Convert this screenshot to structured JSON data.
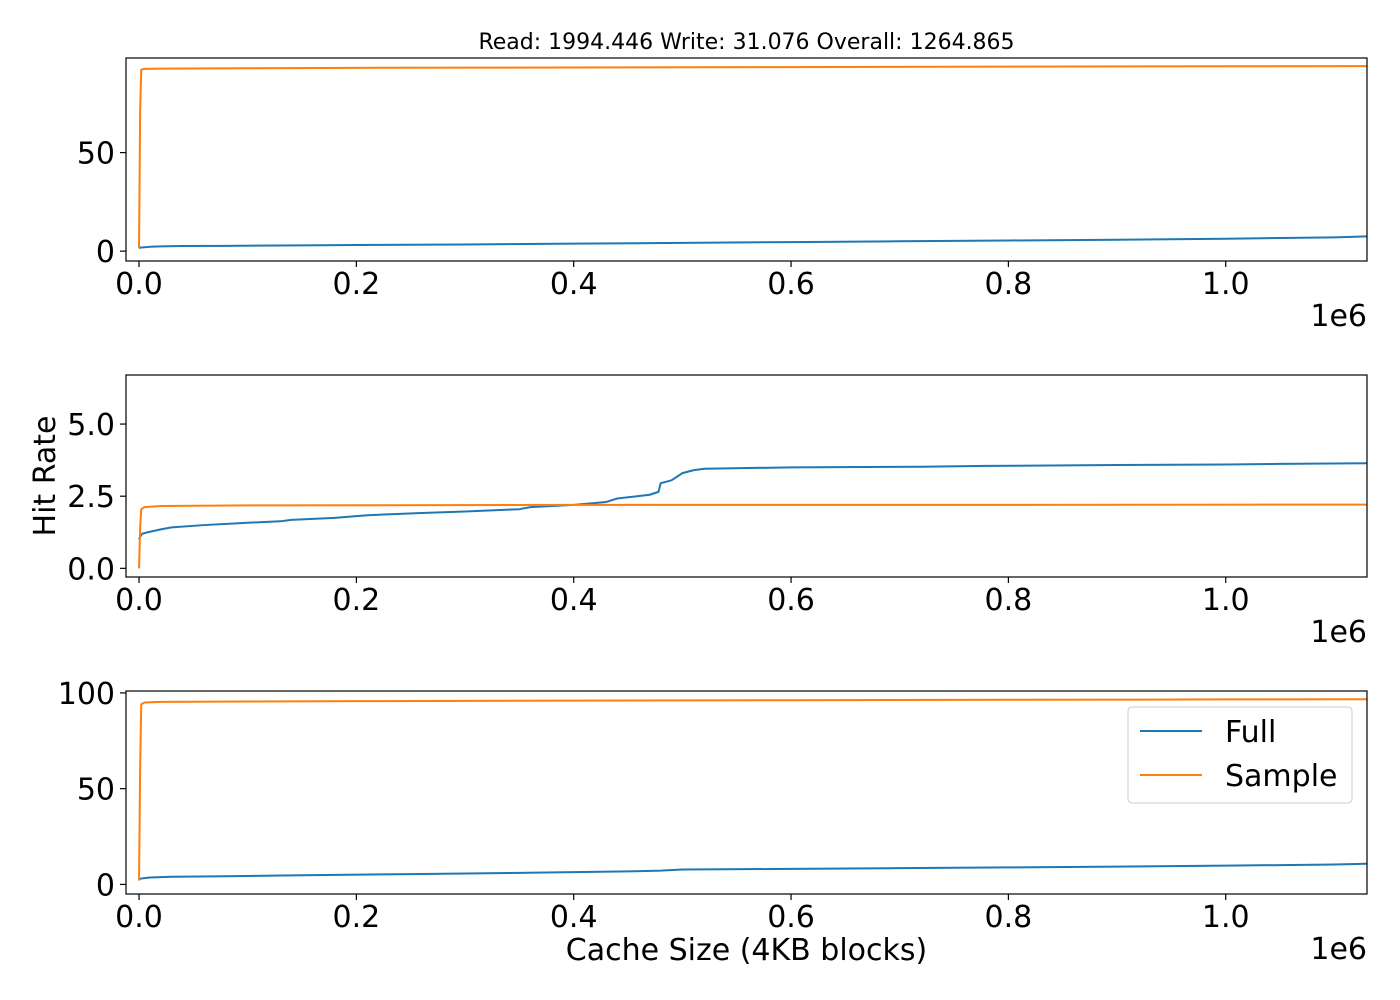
{
  "chart_data": [
    {
      "type": "line",
      "title": "Read: 1994.446 Write: 31.076 Overall: 1264.865",
      "xlabel": "",
      "ylabel": "",
      "x_offset_text": "1e6",
      "xlim": [
        -12000,
        1130000
      ],
      "ylim": [
        -5,
        98
      ],
      "x_ticks": [
        0.0,
        0.2,
        0.4,
        0.6,
        0.8,
        1.0
      ],
      "x_tick_labels": [
        "0.0",
        "0.2",
        "0.4",
        "0.6",
        "0.8",
        "1.0"
      ],
      "y_ticks": [
        0,
        50
      ],
      "y_tick_labels": [
        "0",
        "50"
      ],
      "series": [
        {
          "name": "Full",
          "color": "#1f77b4",
          "x": [
            0,
            1000,
            5000,
            10000,
            20000,
            40000,
            80000,
            150000,
            200000,
            300000,
            400000,
            500000,
            600000,
            700000,
            800000,
            900000,
            1000000,
            1100000,
            1130000
          ],
          "y": [
            1.5,
            1.8,
            2.0,
            2.2,
            2.4,
            2.6,
            2.7,
            2.9,
            3.1,
            3.4,
            3.8,
            4.2,
            4.6,
            5.0,
            5.4,
            5.8,
            6.3,
            7.0,
            7.5
          ]
        },
        {
          "name": "Sample",
          "color": "#ff7f0e",
          "x": [
            0,
            1000,
            2000,
            5000,
            20000,
            100000,
            200000,
            400000,
            600000,
            800000,
            1000000,
            1130000
          ],
          "y": [
            1.5,
            70.0,
            92.0,
            92.5,
            92.6,
            92.8,
            93.0,
            93.2,
            93.4,
            93.6,
            93.8,
            93.9
          ]
        }
      ]
    },
    {
      "type": "line",
      "title": "",
      "xlabel": "",
      "ylabel": "Hit Rate",
      "x_offset_text": "1e6",
      "xlim": [
        -12000,
        1130000
      ],
      "ylim": [
        -0.3,
        6.7
      ],
      "x_ticks": [
        0.0,
        0.2,
        0.4,
        0.6,
        0.8,
        1.0
      ],
      "x_tick_labels": [
        "0.0",
        "0.2",
        "0.4",
        "0.6",
        "0.8",
        "1.0"
      ],
      "y_ticks": [
        0.0,
        2.5,
        5.0
      ],
      "y_tick_labels": [
        "0.0",
        "2.5",
        "5.0"
      ],
      "series": [
        {
          "name": "Full",
          "color": "#1f77b4",
          "x": [
            0,
            1000,
            3000,
            8000,
            20000,
            30000,
            60000,
            100000,
            130000,
            140000,
            180000,
            210000,
            260000,
            300000,
            350000,
            360000,
            400000,
            430000,
            440000,
            470000,
            478000,
            480000,
            490000,
            500000,
            510000,
            520000,
            600000,
            720000,
            780000,
            900000,
            1000000,
            1050000,
            1130000
          ],
          "y": [
            1.0,
            1.1,
            1.2,
            1.25,
            1.35,
            1.42,
            1.5,
            1.58,
            1.63,
            1.68,
            1.75,
            1.84,
            1.92,
            1.97,
            2.05,
            2.12,
            2.2,
            2.3,
            2.42,
            2.55,
            2.65,
            2.95,
            3.05,
            3.3,
            3.4,
            3.45,
            3.5,
            3.52,
            3.55,
            3.58,
            3.6,
            3.62,
            3.64
          ]
        },
        {
          "name": "Sample",
          "color": "#ff7f0e",
          "x": [
            0,
            1000,
            2000,
            5000,
            20000,
            100000,
            400000,
            800000,
            1130000
          ],
          "y": [
            0.0,
            1.4,
            2.05,
            2.12,
            2.16,
            2.18,
            2.2,
            2.2,
            2.21
          ]
        }
      ]
    },
    {
      "type": "line",
      "title": "",
      "xlabel": "Cache Size (4KB blocks)",
      "ylabel": "",
      "x_offset_text": "1e6",
      "xlim": [
        -12000,
        1130000
      ],
      "ylim": [
        -5,
        101
      ],
      "x_ticks": [
        0.0,
        0.2,
        0.4,
        0.6,
        0.8,
        1.0
      ],
      "x_tick_labels": [
        "0.0",
        "0.2",
        "0.4",
        "0.6",
        "0.8",
        "1.0"
      ],
      "y_ticks": [
        0,
        50,
        100
      ],
      "y_tick_labels": [
        "0",
        "50",
        "100"
      ],
      "legend": {
        "position": "upper-right",
        "entries": [
          "Full",
          "Sample"
        ]
      },
      "series": [
        {
          "name": "Full",
          "color": "#1f77b4",
          "x": [
            0,
            1000,
            5000,
            10000,
            30000,
            80000,
            150000,
            250000,
            350000,
            450000,
            480000,
            500000,
            600000,
            700000,
            800000,
            900000,
            1000000,
            1100000,
            1130000
          ],
          "y": [
            2.5,
            3.0,
            3.3,
            3.6,
            4.0,
            4.3,
            4.8,
            5.4,
            6.0,
            6.8,
            7.2,
            7.8,
            8.1,
            8.5,
            8.9,
            9.3,
            9.8,
            10.4,
            10.8
          ]
        },
        {
          "name": "Sample",
          "color": "#ff7f0e",
          "x": [
            0,
            1000,
            2000,
            5000,
            20000,
            100000,
            200000,
            400000,
            600000,
            800000,
            1000000,
            1130000
          ],
          "y": [
            2.0,
            60.0,
            94.0,
            95.0,
            95.3,
            95.5,
            95.7,
            96.0,
            96.2,
            96.4,
            96.6,
            96.7
          ]
        }
      ]
    }
  ]
}
